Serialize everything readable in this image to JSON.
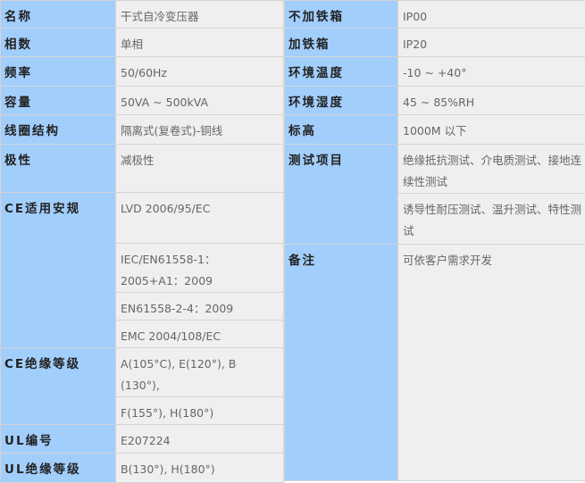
{
  "colors": {
    "label_bg": "#a2cefc",
    "value_bg": "#efefef",
    "border": "#d4d4d4"
  },
  "left": {
    "rows": [
      {
        "label": "名称",
        "value": "干式自冷变压器"
      },
      {
        "label": "相数",
        "value": "单相"
      },
      {
        "label": "频率",
        "value": "50/60Hz"
      },
      {
        "label": "容量",
        "value": "50VA ~ 500kVA"
      },
      {
        "label": "线圈结构",
        "value": "隔离式(复卷式)-铜线"
      },
      {
        "label": "极性",
        "value": "减极性"
      }
    ],
    "ce_safety": {
      "label": "CE适用安规",
      "values": [
        "LVD 2006/95/EC",
        "IEC/EN61558-1：2005+A1：2009",
        "EN61558-2-4：2009",
        "EMC 2004/108/EC"
      ]
    },
    "ce_insulation": {
      "label": "CE绝缘等级",
      "values": [
        "A(105°C), E(120°), B (130°),",
        "F(155°), H(180°)"
      ]
    },
    "ul_number": {
      "label": "UL编号",
      "value": "E207224"
    },
    "ul_insulation": {
      "label": "UL绝缘等级",
      "value": "B(130°), H(180°)"
    }
  },
  "right": {
    "rows": [
      {
        "label": "不加铁箱",
        "value": "IP00"
      },
      {
        "label": "加铁箱",
        "value": "IP20"
      },
      {
        "label": "环境温度",
        "value": "-10 ~ +40°"
      },
      {
        "label": "环境湿度",
        "value": "45 ~ 85%RH"
      },
      {
        "label": "标高",
        "value": "1000M 以下"
      }
    ],
    "tests": {
      "label": "测试项目",
      "values": [
        "绝缘抵抗测试、介电质测试、接地连续性测试",
        "诱导性耐压测试、温升测试、特性测试"
      ]
    },
    "remarks": {
      "label": "备注",
      "value": "可依客户需求开发"
    }
  }
}
